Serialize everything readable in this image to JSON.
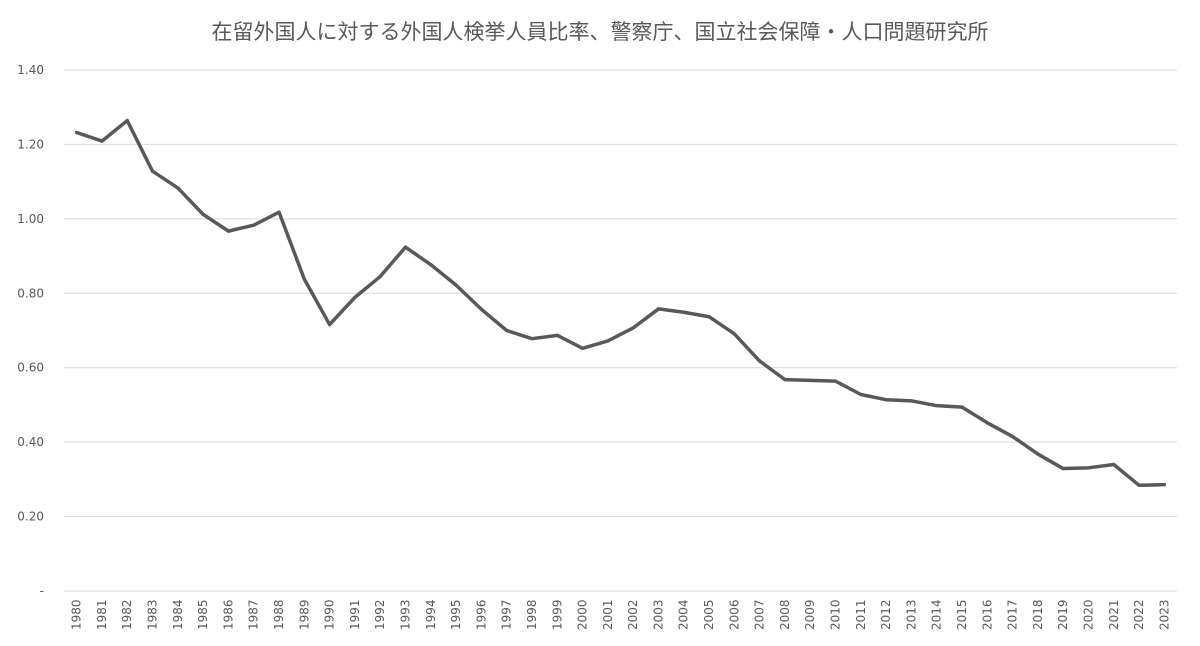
{
  "chart_data": {
    "type": "line",
    "title": "在留外国人に対する外国人検挙人員比率、警察庁、国立社会保障・人口問題研究所",
    "xlabel": "",
    "ylabel": "",
    "ylim": [
      0,
      1.4
    ],
    "yticks": [
      {
        "value": 0,
        "label": "-"
      },
      {
        "value": 0.2,
        "label": "0.20"
      },
      {
        "value": 0.4,
        "label": "0.40"
      },
      {
        "value": 0.6,
        "label": "0.60"
      },
      {
        "value": 0.8,
        "label": "0.80"
      },
      {
        "value": 1.0,
        "label": "1.00"
      },
      {
        "value": 1.2,
        "label": "1.20"
      },
      {
        "value": 1.4,
        "label": "1.40"
      }
    ],
    "grid": true,
    "line_color": "#595959",
    "categories": [
      "1980",
      "1981",
      "1982",
      "1983",
      "1984",
      "1985",
      "1986",
      "1987",
      "1988",
      "1989",
      "1990",
      "1991",
      "1992",
      "1993",
      "1994",
      "1995",
      "1996",
      "1997",
      "1998",
      "1999",
      "2000",
      "2001",
      "2002",
      "2003",
      "2004",
      "2005",
      "2006",
      "2007",
      "2008",
      "2009",
      "2010",
      "2011",
      "2012",
      "2013",
      "2014",
      "2015",
      "2016",
      "2017",
      "2018",
      "2019",
      "2020",
      "2021",
      "2022",
      "2023"
    ],
    "series": [
      {
        "values": [
          1.232,
          1.209,
          1.264,
          1.128,
          1.083,
          1.012,
          0.967,
          0.983,
          1.018,
          0.838,
          0.716,
          0.789,
          0.845,
          0.924,
          0.877,
          0.822,
          0.757,
          0.7,
          0.678,
          0.687,
          0.652,
          0.672,
          0.707,
          0.758,
          0.749,
          0.737,
          0.691,
          0.618,
          0.568,
          0.566,
          0.564,
          0.528,
          0.514,
          0.511,
          0.498,
          0.494,
          0.452,
          0.415,
          0.368,
          0.329,
          0.331,
          0.34,
          0.284,
          0.286
        ]
      }
    ]
  }
}
